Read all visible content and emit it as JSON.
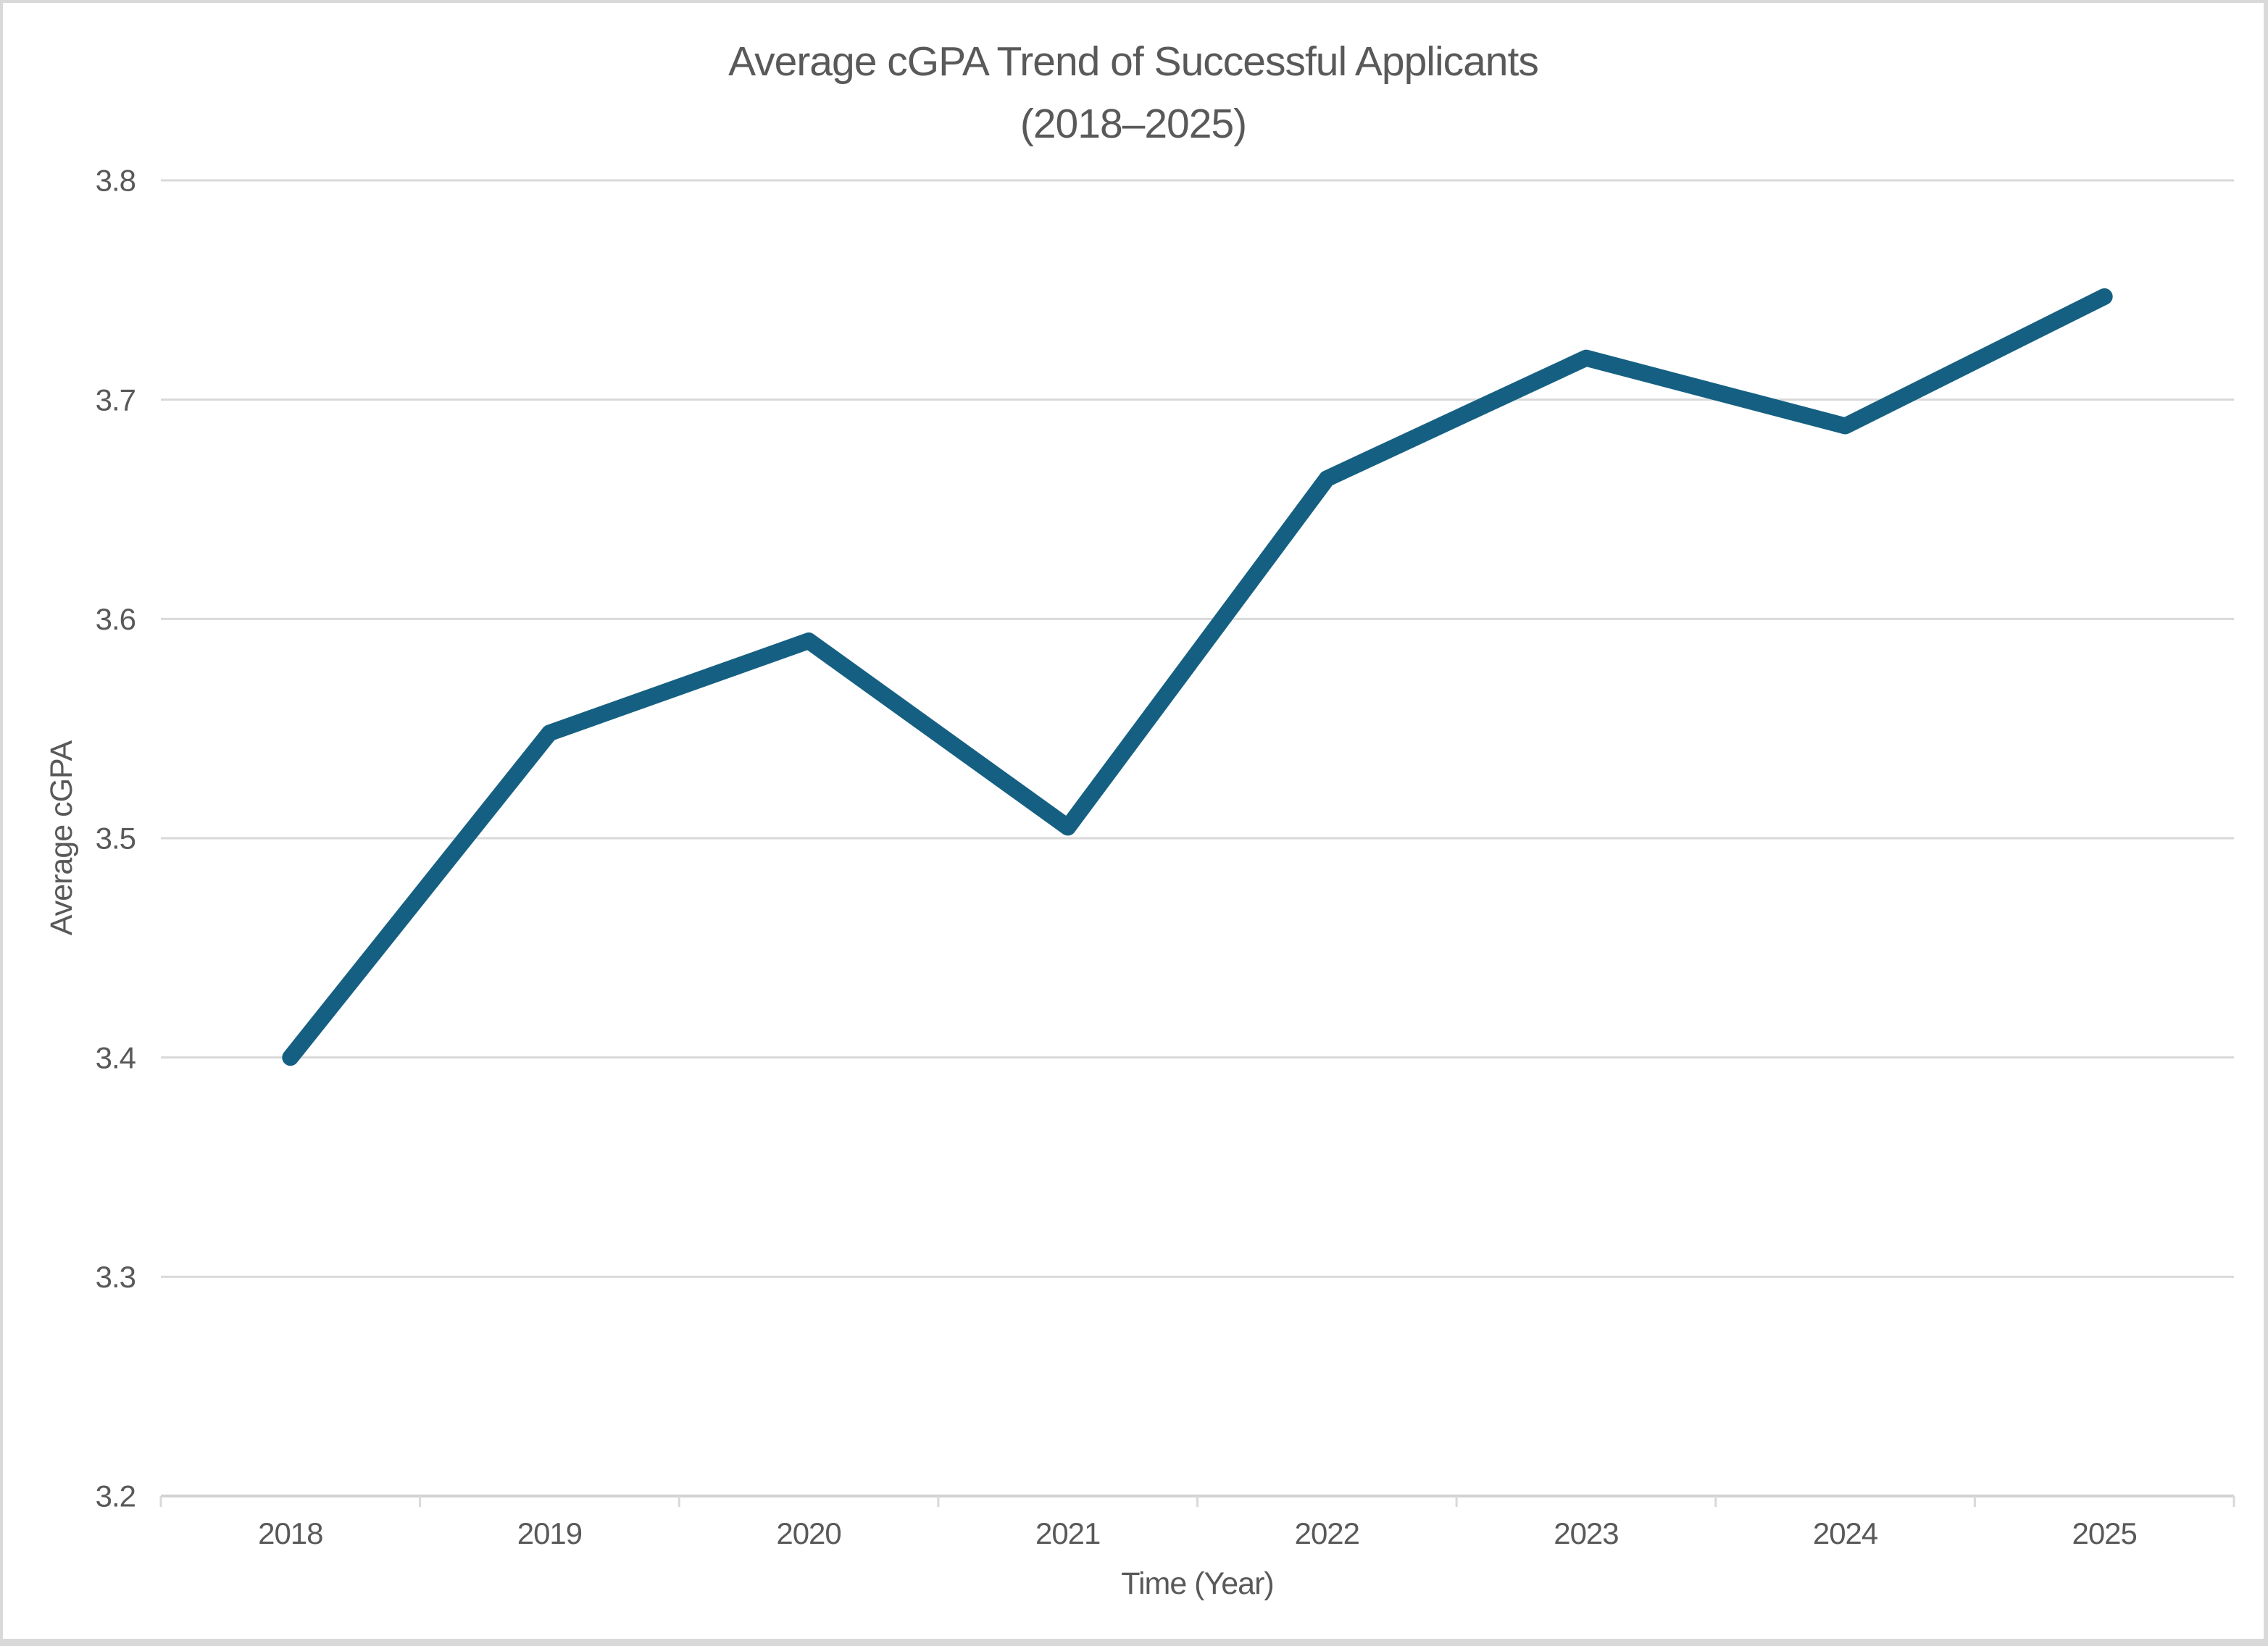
{
  "frame": {
    "background": "#ffffff",
    "border_color": "#d9d9d9"
  },
  "chart_data": {
    "type": "line",
    "title": "Average cGPA Trend of Successful Applicants",
    "subtitle": "(2018–2025)",
    "xlabel": "Time (Year)",
    "ylabel": "Average cGPA",
    "categories": [
      "2018",
      "2019",
      "2020",
      "2021",
      "2022",
      "2023",
      "2024",
      "2025"
    ],
    "series": [
      {
        "name": "Average cGPA",
        "values": [
          3.4,
          3.548,
          3.59,
          3.505,
          3.664,
          3.719,
          3.688,
          3.747
        ]
      }
    ],
    "ylim": [
      3.2,
      3.8
    ],
    "y_ticks": [
      "3.2",
      "3.3",
      "3.4",
      "3.5",
      "3.6",
      "3.7",
      "3.8"
    ],
    "grid": true,
    "legend_position": "none",
    "colors": {
      "line": "#156082",
      "gridline": "#d9d9d9",
      "axis_line": "#d2d2d2",
      "tick_mark": "#d9d9d9",
      "text": "#595959"
    }
  }
}
